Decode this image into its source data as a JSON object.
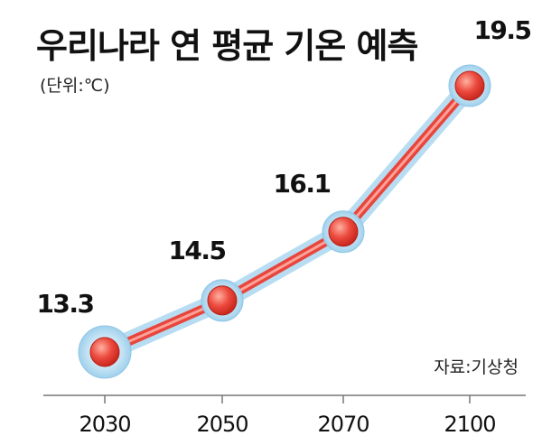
{
  "title": "우리나라 연 평균 기온 예측",
  "unit_label": "(단위:℃)",
  "source": "자료:기상청",
  "colors": {
    "line": "#e8453c",
    "line_highlight": "#ffb3a8",
    "marker": "#e43a30",
    "halo": "#b8ddf2",
    "axis": "#777777"
  },
  "chart_data": {
    "type": "line",
    "title": "우리나라 연 평균 기온 예측",
    "xlabel": "",
    "ylabel": "",
    "unit": "℃",
    "categories": [
      "2030",
      "2050",
      "2070",
      "2100"
    ],
    "x": [
      2030,
      2050,
      2070,
      2100
    ],
    "values": [
      13.3,
      14.5,
      16.1,
      19.5
    ],
    "value_labels": [
      "13.3",
      "14.5",
      "16.1",
      "19.5"
    ],
    "grid": false,
    "legend": "none"
  }
}
